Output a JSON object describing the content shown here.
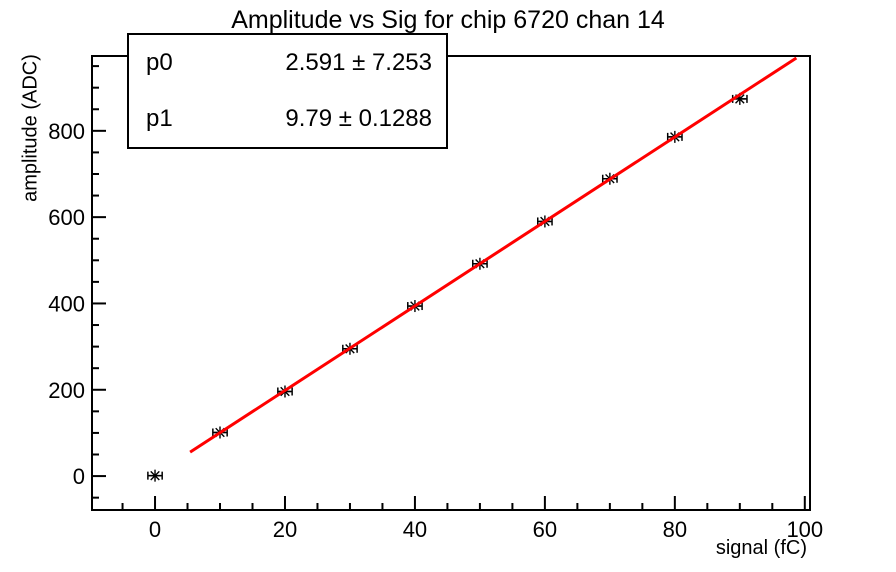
{
  "stats": {
    "rows": [
      {
        "label": "p0",
        "value": "2.591 ± 7.253"
      },
      {
        "label": "p1",
        "value": "9.79 ± 0.1288"
      }
    ]
  },
  "chart_data": {
    "type": "scatter",
    "title": "Amplitude vs Sig for chip 6720 chan 14",
    "xlabel": "signal (fC)",
    "ylabel": "amplitude (ADC)",
    "xlim": [
      -9.7,
      100.8
    ],
    "ylim": [
      -78.6,
      973.4
    ],
    "x_major_ticks": [
      0,
      20,
      40,
      60,
      80,
      100
    ],
    "x_minor_step": 5,
    "y_major_ticks": [
      0,
      200,
      400,
      600,
      800
    ],
    "y_minor_step": 50,
    "grid": false,
    "marker": "star-with-x-error-bars",
    "marker_color": "#000000",
    "points": {
      "x": [
        0,
        10,
        20,
        30,
        40,
        50,
        60,
        70,
        80,
        90
      ],
      "y": [
        1,
        101,
        196,
        295,
        394,
        492,
        590,
        689,
        786,
        874
      ],
      "xerr": 1.1
    },
    "fit": {
      "model": "p0 + p1*x",
      "p0": 2.591,
      "p0_err": 7.253,
      "p1": 9.79,
      "p1_err": 0.1288,
      "x_range": [
        5.4,
        98.7
      ],
      "color": "#ff0000"
    }
  }
}
